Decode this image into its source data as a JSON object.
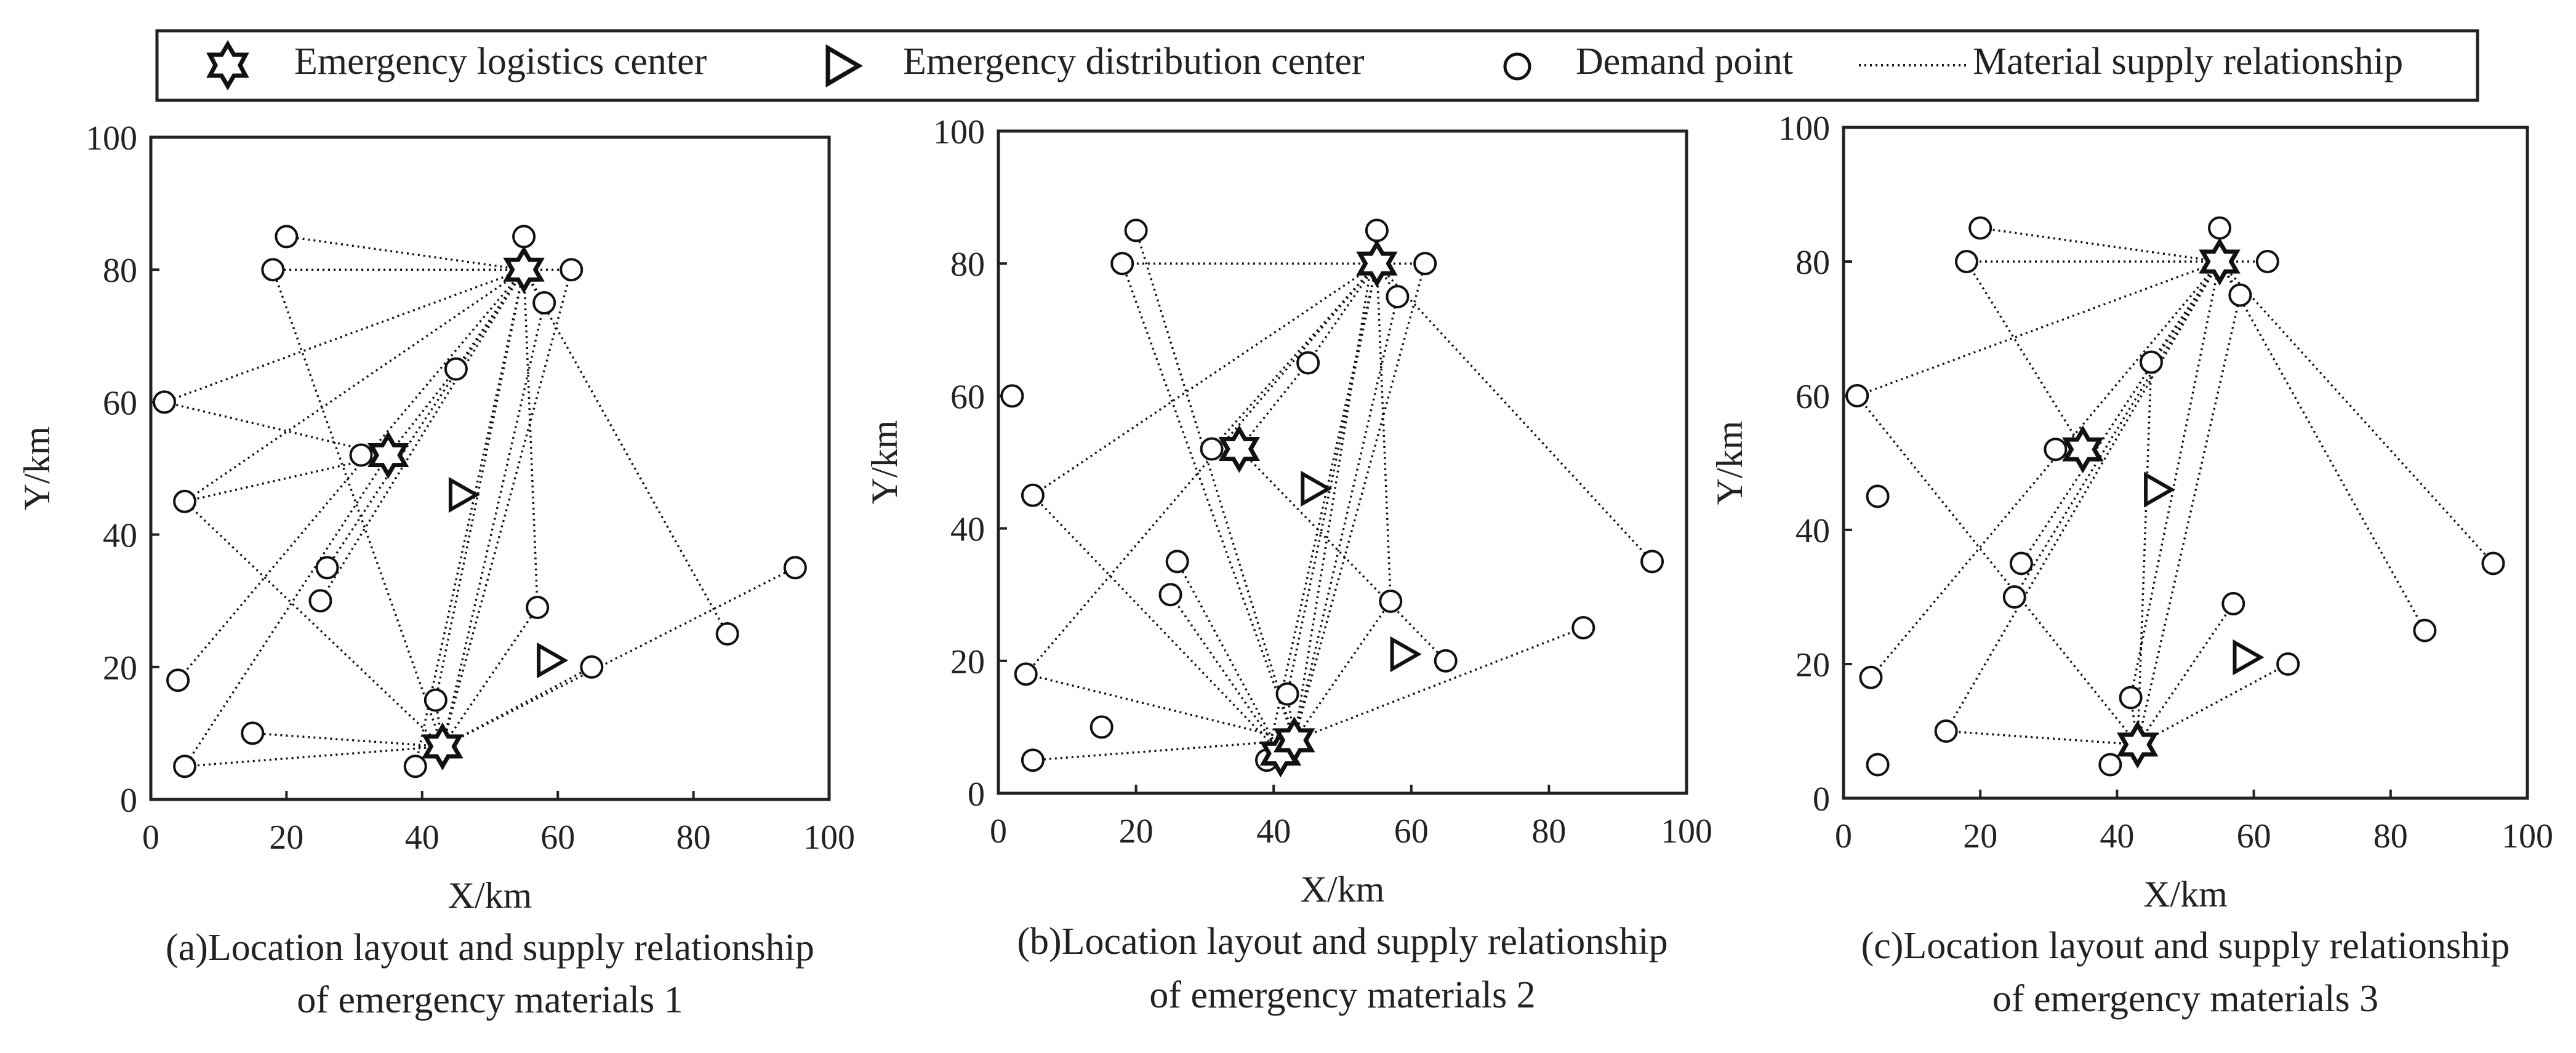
{
  "legend": {
    "items": [
      {
        "symbol": "star-icon",
        "label": "Emergency logistics center"
      },
      {
        "symbol": "triangle-icon",
        "label": "Emergency distribution center"
      },
      {
        "symbol": "circle-icon",
        "label": "Demand point"
      },
      {
        "symbol": "dotted-line-icon",
        "label": "Material supply relationship"
      }
    ]
  },
  "chart_data": [
    {
      "type": "scatter",
      "title_lines": [
        "(a)Location layout and supply relationship",
        "of emergency materials 1"
      ],
      "xlabel": "X/km",
      "ylabel": "Y/km",
      "xlim": [
        0,
        100
      ],
      "ylim": [
        0,
        100
      ],
      "xticks": [
        0,
        20,
        40,
        60,
        80,
        100
      ],
      "yticks": [
        0,
        20,
        40,
        60,
        80,
        100
      ],
      "logistics_centers": [
        [
          55,
          80
        ],
        [
          35,
          52
        ],
        [
          43,
          8
        ]
      ],
      "distribution_centers": [
        [
          46,
          46
        ],
        [
          59,
          21
        ]
      ],
      "demand_points": [
        [
          2,
          60
        ],
        [
          5,
          45
        ],
        [
          4,
          18
        ],
        [
          5,
          5
        ],
        [
          15,
          10
        ],
        [
          20,
          85
        ],
        [
          18,
          80
        ],
        [
          26,
          35
        ],
        [
          25,
          30
        ],
        [
          31,
          52
        ],
        [
          39,
          5
        ],
        [
          42,
          15
        ],
        [
          45,
          65
        ],
        [
          55,
          85
        ],
        [
          58,
          75
        ],
        [
          62,
          80
        ],
        [
          57,
          29
        ],
        [
          65,
          20
        ],
        [
          85,
          25
        ],
        [
          95,
          35
        ]
      ],
      "links": [
        [
          [
            55,
            80
          ],
          [
            20,
            85
          ]
        ],
        [
          [
            55,
            80
          ],
          [
            18,
            80
          ]
        ],
        [
          [
            55,
            80
          ],
          [
            55,
            85
          ]
        ],
        [
          [
            55,
            80
          ],
          [
            62,
            80
          ]
        ],
        [
          [
            55,
            80
          ],
          [
            58,
            75
          ]
        ],
        [
          [
            55,
            80
          ],
          [
            2,
            60
          ]
        ],
        [
          [
            55,
            80
          ],
          [
            5,
            45
          ]
        ],
        [
          [
            55,
            80
          ],
          [
            45,
            65
          ]
        ],
        [
          [
            55,
            80
          ],
          [
            26,
            35
          ]
        ],
        [
          [
            55,
            80
          ],
          [
            25,
            30
          ]
        ],
        [
          [
            55,
            80
          ],
          [
            4,
            18
          ]
        ],
        [
          [
            55,
            80
          ],
          [
            42,
            15
          ]
        ],
        [
          [
            55,
            80
          ],
          [
            39,
            5
          ]
        ],
        [
          [
            55,
            80
          ],
          [
            57,
            29
          ]
        ],
        [
          [
            55,
            80
          ],
          [
            85,
            25
          ]
        ],
        [
          [
            35,
            52
          ],
          [
            2,
            60
          ]
        ],
        [
          [
            35,
            52
          ],
          [
            31,
            52
          ]
        ],
        [
          [
            35,
            52
          ],
          [
            5,
            45
          ]
        ],
        [
          [
            35,
            52
          ],
          [
            5,
            5
          ]
        ],
        [
          [
            35,
            52
          ],
          [
            45,
            65
          ]
        ],
        [
          [
            43,
            8
          ],
          [
            58,
            75
          ]
        ],
        [
          [
            43,
            8
          ],
          [
            57,
            29
          ]
        ],
        [
          [
            43,
            8
          ],
          [
            65,
            20
          ]
        ],
        [
          [
            43,
            8
          ],
          [
            95,
            35
          ]
        ],
        [
          [
            43,
            8
          ],
          [
            5,
            5
          ]
        ],
        [
          [
            43,
            8
          ],
          [
            15,
            10
          ]
        ],
        [
          [
            43,
            8
          ],
          [
            39,
            5
          ]
        ],
        [
          [
            43,
            8
          ],
          [
            42,
            15
          ]
        ],
        [
          [
            43,
            8
          ],
          [
            5,
            45
          ]
        ],
        [
          [
            43,
            8
          ],
          [
            18,
            80
          ]
        ],
        [
          [
            43,
            8
          ],
          [
            62,
            80
          ]
        ]
      ]
    },
    {
      "type": "scatter",
      "title_lines": [
        "(b)Location layout and supply relationship",
        "of emergency materials 2"
      ],
      "xlabel": "X/km",
      "ylabel": "Y/km",
      "xlim": [
        0,
        100
      ],
      "ylim": [
        0,
        100
      ],
      "xticks": [
        0,
        20,
        40,
        60,
        80,
        100
      ],
      "yticks": [
        0,
        20,
        40,
        60,
        80,
        100
      ],
      "logistics_centers": [
        [
          55,
          80
        ],
        [
          35,
          52
        ],
        [
          41,
          6
        ],
        [
          43,
          8
        ]
      ],
      "distribution_centers": [
        [
          46,
          46
        ],
        [
          59,
          21
        ]
      ],
      "demand_points": [
        [
          2,
          60
        ],
        [
          5,
          45
        ],
        [
          4,
          18
        ],
        [
          5,
          5
        ],
        [
          15,
          10
        ],
        [
          20,
          85
        ],
        [
          18,
          80
        ],
        [
          26,
          35
        ],
        [
          25,
          30
        ],
        [
          31,
          52
        ],
        [
          39,
          5
        ],
        [
          42,
          15
        ],
        [
          45,
          65
        ],
        [
          55,
          85
        ],
        [
          58,
          75
        ],
        [
          62,
          80
        ],
        [
          57,
          29
        ],
        [
          65,
          20
        ],
        [
          85,
          25
        ],
        [
          95,
          35
        ]
      ],
      "links": [
        [
          [
            55,
            80
          ],
          [
            18,
            80
          ]
        ],
        [
          [
            55,
            80
          ],
          [
            55,
            85
          ]
        ],
        [
          [
            55,
            80
          ],
          [
            62,
            80
          ]
        ],
        [
          [
            55,
            80
          ],
          [
            58,
            75
          ]
        ],
        [
          [
            55,
            80
          ],
          [
            5,
            45
          ]
        ],
        [
          [
            55,
            80
          ],
          [
            45,
            65
          ]
        ],
        [
          [
            55,
            80
          ],
          [
            31,
            52
          ]
        ],
        [
          [
            55,
            80
          ],
          [
            4,
            18
          ]
        ],
        [
          [
            55,
            80
          ],
          [
            57,
            29
          ]
        ],
        [
          [
            55,
            80
          ],
          [
            95,
            35
          ]
        ],
        [
          [
            55,
            80
          ],
          [
            39,
            5
          ]
        ],
        [
          [
            55,
            80
          ],
          [
            42,
            15
          ]
        ],
        [
          [
            35,
            52
          ],
          [
            31,
            52
          ]
        ],
        [
          [
            35,
            52
          ],
          [
            45,
            65
          ]
        ],
        [
          [
            35,
            52
          ],
          [
            65,
            20
          ]
        ],
        [
          [
            43,
            8
          ],
          [
            58,
            75
          ]
        ],
        [
          [
            43,
            8
          ],
          [
            57,
            29
          ]
        ],
        [
          [
            43,
            8
          ],
          [
            85,
            25
          ]
        ],
        [
          [
            43,
            8
          ],
          [
            5,
            5
          ]
        ],
        [
          [
            43,
            8
          ],
          [
            39,
            5
          ]
        ],
        [
          [
            43,
            8
          ],
          [
            42,
            15
          ]
        ],
        [
          [
            43,
            8
          ],
          [
            4,
            18
          ]
        ],
        [
          [
            43,
            8
          ],
          [
            20,
            85
          ]
        ],
        [
          [
            43,
            8
          ],
          [
            18,
            80
          ]
        ],
        [
          [
            43,
            8
          ],
          [
            62,
            80
          ]
        ],
        [
          [
            43,
            8
          ],
          [
            55,
            85
          ]
        ],
        [
          [
            41,
            6
          ],
          [
            26,
            35
          ]
        ],
        [
          [
            41,
            6
          ],
          [
            25,
            30
          ]
        ],
        [
          [
            41,
            6
          ],
          [
            5,
            45
          ]
        ]
      ]
    },
    {
      "type": "scatter",
      "title_lines": [
        "(c)Location layout and supply relationship",
        "of emergency materials 3"
      ],
      "xlabel": "X/km",
      "ylabel": "Y/km",
      "xlim": [
        0,
        100
      ],
      "ylim": [
        0,
        100
      ],
      "xticks": [
        0,
        20,
        40,
        60,
        80,
        100
      ],
      "yticks": [
        0,
        20,
        40,
        60,
        80,
        100
      ],
      "logistics_centers": [
        [
          55,
          80
        ],
        [
          35,
          52
        ],
        [
          43,
          8
        ]
      ],
      "distribution_centers": [
        [
          46,
          46
        ],
        [
          59,
          21
        ]
      ],
      "demand_points": [
        [
          2,
          60
        ],
        [
          5,
          45
        ],
        [
          4,
          18
        ],
        [
          5,
          5
        ],
        [
          15,
          10
        ],
        [
          20,
          85
        ],
        [
          18,
          80
        ],
        [
          26,
          35
        ],
        [
          25,
          30
        ],
        [
          31,
          52
        ],
        [
          39,
          5
        ],
        [
          42,
          15
        ],
        [
          45,
          65
        ],
        [
          55,
          85
        ],
        [
          58,
          75
        ],
        [
          62,
          80
        ],
        [
          57,
          29
        ],
        [
          65,
          20
        ],
        [
          85,
          25
        ],
        [
          95,
          35
        ]
      ],
      "links": [
        [
          [
            55,
            80
          ],
          [
            20,
            85
          ]
        ],
        [
          [
            55,
            80
          ],
          [
            18,
            80
          ]
        ],
        [
          [
            55,
            80
          ],
          [
            55,
            85
          ]
        ],
        [
          [
            55,
            80
          ],
          [
            62,
            80
          ]
        ],
        [
          [
            55,
            80
          ],
          [
            58,
            75
          ]
        ],
        [
          [
            55,
            80
          ],
          [
            2,
            60
          ]
        ],
        [
          [
            55,
            80
          ],
          [
            45,
            65
          ]
        ],
        [
          [
            55,
            80
          ],
          [
            26,
            35
          ]
        ],
        [
          [
            55,
            80
          ],
          [
            25,
            30
          ]
        ],
        [
          [
            55,
            80
          ],
          [
            4,
            18
          ]
        ],
        [
          [
            55,
            80
          ],
          [
            15,
            10
          ]
        ],
        [
          [
            55,
            80
          ],
          [
            42,
            15
          ]
        ],
        [
          [
            55,
            80
          ],
          [
            95,
            35
          ]
        ],
        [
          [
            55,
            80
          ],
          [
            85,
            25
          ]
        ],
        [
          [
            35,
            52
          ],
          [
            31,
            52
          ]
        ],
        [
          [
            35,
            52
          ],
          [
            18,
            80
          ]
        ],
        [
          [
            43,
            8
          ],
          [
            58,
            75
          ]
        ],
        [
          [
            43,
            8
          ],
          [
            57,
            29
          ]
        ],
        [
          [
            43,
            8
          ],
          [
            65,
            20
          ]
        ],
        [
          [
            43,
            8
          ],
          [
            2,
            60
          ]
        ],
        [
          [
            43,
            8
          ],
          [
            15,
            10
          ]
        ],
        [
          [
            43,
            8
          ],
          [
            39,
            5
          ]
        ],
        [
          [
            43,
            8
          ],
          [
            42,
            15
          ]
        ],
        [
          [
            43,
            8
          ],
          [
            45,
            65
          ]
        ]
      ]
    }
  ]
}
